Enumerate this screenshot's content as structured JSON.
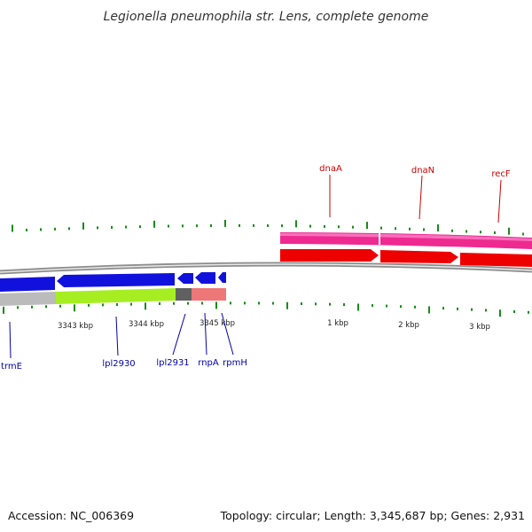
{
  "title": "Legionella pneumophila str. Lens, complete genome",
  "footer": {
    "accession": "Accession: NC_006369",
    "summary": "Topology: circular; Length: 3,345,687 bp; Genes: 2,931"
  },
  "colors": {
    "backbone": "#8c8c8c",
    "tick": "#1a8a1a",
    "forward_gene_red": "#ee0000",
    "forward_gene_pink": "#ee2a90",
    "reverse_gene_blue": "#1111dd",
    "reverse_gene_green": "#a6ee22",
    "reverse_gene_gray": "#bbbbbb",
    "reverse_gene_dark": "#606060",
    "reverse_gene_salmon": "#ee7777",
    "label_red": "#cc0000",
    "label_blue": "#0000aa"
  },
  "tick_labels": [
    "3343 kbp",
    "3344 kbp",
    "3345 kbp",
    "1 kbp",
    "2 kbp",
    "3 kbp"
  ],
  "genes_forward": [
    {
      "label": "dnaA"
    },
    {
      "label": "dnaN"
    },
    {
      "label": "recF"
    }
  ],
  "genes_reverse": [
    {
      "label": "trmE"
    },
    {
      "label": "lpl2930"
    },
    {
      "label": "lpl2931"
    },
    {
      "label": "rnpA"
    },
    {
      "label": "rpmH"
    }
  ]
}
